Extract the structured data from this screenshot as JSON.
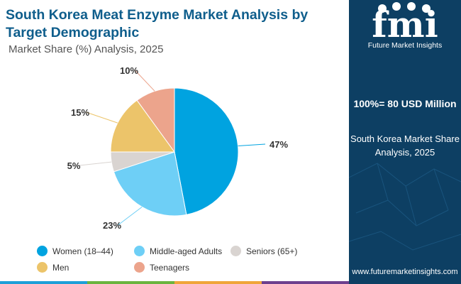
{
  "header": {
    "title": "South Korea Meat Enzyme Market Analysis by Target Demographic",
    "subtitle": "Market Share (%) Analysis, 2025"
  },
  "chart_data": {
    "type": "pie",
    "title": "South Korea Meat Enzyme Market Analysis by Target Demographic",
    "subtitle": "Market Share (%) Analysis, 2025",
    "categories": [
      "Women (18–44)",
      "Middle-aged Adults",
      "Seniors (65+)",
      "Men",
      "Teenagers"
    ],
    "values": [
      47,
      23,
      5,
      15,
      10
    ],
    "value_labels": [
      "47%",
      "23%",
      "5%",
      "15%",
      "10%"
    ],
    "colors": [
      "#00a3e0",
      "#6ecff6",
      "#d9d4d1",
      "#ecc46a",
      "#eca48c"
    ],
    "legend_position": "bottom"
  },
  "side_panel": {
    "logo_text": "fmi",
    "brand": "Future Market Insights",
    "total": "100%= 80 USD Million",
    "description": "South Korea Market Share Analysis, 2025",
    "website": "www.futuremarketinsights.com"
  },
  "colors": {
    "title": "#0f5e8c",
    "panel_background": "#0d3f63",
    "bottom_bar": [
      "#1d9fd8",
      "#6ab43e",
      "#f0a53a",
      "#6d3f8e"
    ]
  }
}
